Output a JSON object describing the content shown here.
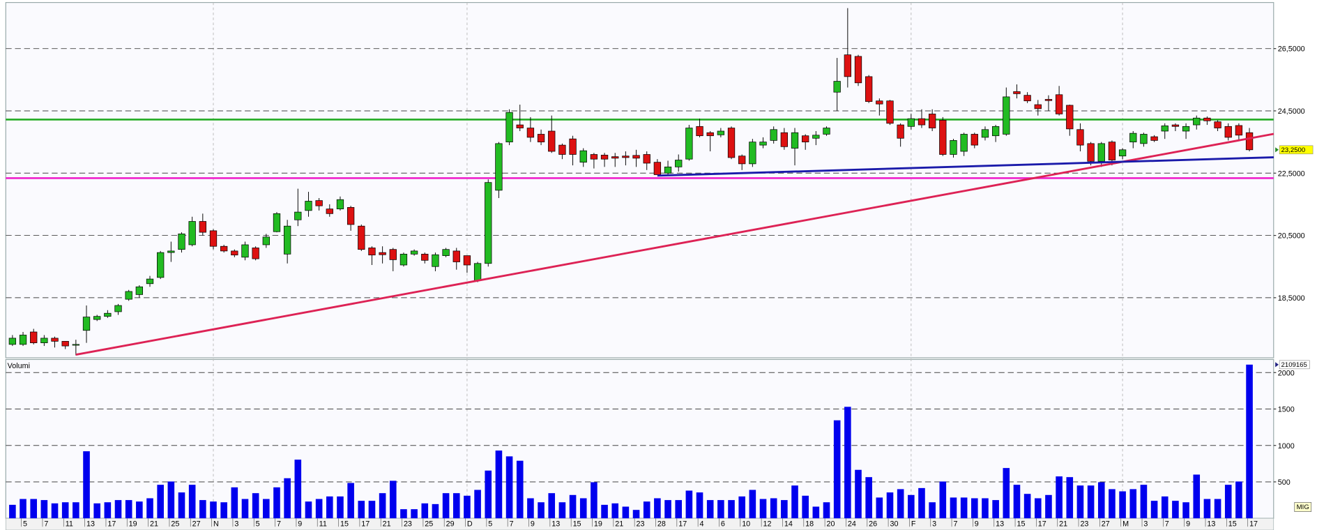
{
  "chart_data": [
    {
      "type": "candlestick",
      "categories": [
        null,
        "5",
        null,
        "7",
        null,
        "11",
        null,
        "13",
        null,
        "17",
        null,
        "19",
        null,
        "21",
        null,
        "25",
        null,
        "27",
        null,
        "N",
        null,
        "3",
        null,
        "5",
        null,
        "7",
        null,
        "9",
        null,
        "11",
        null,
        "15",
        null,
        "17",
        null,
        "21",
        null,
        "23",
        null,
        "25",
        null,
        "29",
        null,
        "D",
        null,
        "5",
        null,
        "7",
        null,
        "9",
        null,
        "13",
        null,
        "15",
        null,
        "19",
        null,
        "21",
        null,
        "23",
        null,
        "28",
        null,
        "17",
        null,
        "4",
        null,
        "6",
        null,
        "10",
        null,
        "12",
        null,
        "14",
        null,
        "18",
        null,
        "20",
        null,
        "24",
        null,
        "26",
        null,
        "30",
        null,
        "F",
        null,
        "3",
        null,
        "7",
        null,
        "9",
        null,
        "13",
        null,
        "15",
        null,
        "17",
        null,
        "21",
        null,
        "23",
        null,
        "27",
        null,
        "M",
        null,
        "3",
        null,
        "7",
        null,
        "9",
        null,
        "13",
        null,
        "15",
        null,
        "17"
      ],
      "open": [
        17.0,
        17.0,
        17.4,
        17.05,
        17.2,
        17.1,
        16.98,
        17.45,
        17.8,
        17.9,
        18.05,
        18.45,
        18.6,
        18.95,
        19.15,
        19.95,
        20.05,
        20.2,
        20.95,
        20.65,
        20.15,
        20.0,
        19.8,
        20.1,
        20.2,
        20.62,
        19.9,
        21.0,
        21.3,
        21.62,
        21.35,
        21.35,
        21.4,
        20.8,
        20.1,
        19.95,
        20.05,
        19.55,
        19.9,
        19.9,
        19.5,
        19.85,
        20.0,
        19.85,
        19.05,
        19.6,
        21.95,
        23.5,
        24.05,
        23.95,
        23.75,
        23.85,
        23.4,
        23.6,
        22.85,
        23.1,
        23.08,
        23.03,
        23.05,
        23.07,
        23.1,
        22.85,
        22.5,
        22.7,
        22.95,
        24.0,
        23.8,
        23.73,
        23.95,
        23.05,
        22.8,
        23.4,
        23.55,
        23.8,
        23.3,
        23.7,
        23.62,
        23.75,
        25.1,
        26.3,
        26.25,
        25.6,
        24.82,
        24.82,
        24.05,
        24.0,
        24.25,
        24.4,
        24.2,
        23.1,
        23.2,
        23.75,
        23.65,
        23.7,
        23.75,
        25.12,
        25.0,
        24.7,
        24.87,
        25.02,
        24.68,
        23.9,
        23.45,
        22.88,
        23.5,
        23.05,
        23.5,
        23.45,
        23.67,
        23.85,
        24.05,
        23.85,
        24.05,
        24.27,
        24.15,
        24.0,
        24.03,
        23.8
      ],
      "high": [
        17.3,
        17.4,
        17.5,
        17.3,
        17.25,
        17.1,
        17.15,
        18.25,
        17.95,
        18.1,
        18.3,
        18.75,
        18.9,
        19.2,
        20.0,
        20.3,
        20.6,
        21.1,
        21.2,
        20.7,
        20.2,
        20.05,
        20.3,
        20.15,
        20.55,
        21.25,
        21.0,
        22.0,
        21.9,
        21.7,
        21.5,
        21.75,
        21.45,
        20.85,
        20.15,
        20.15,
        20.1,
        19.95,
        20.05,
        19.95,
        19.95,
        20.1,
        20.1,
        19.85,
        19.65,
        22.3,
        23.5,
        24.55,
        24.7,
        24.3,
        23.9,
        24.35,
        23.45,
        23.7,
        23.3,
        23.15,
        23.15,
        23.15,
        23.2,
        23.25,
        23.2,
        22.95,
        22.9,
        23.1,
        24.05,
        24.25,
        23.85,
        23.95,
        24.0,
        23.1,
        23.6,
        23.65,
        24.0,
        23.95,
        23.95,
        23.75,
        23.85,
        24.0,
        26.2,
        27.8,
        26.3,
        25.65,
        24.9,
        24.85,
        24.1,
        24.4,
        24.55,
        24.55,
        24.3,
        23.6,
        23.8,
        23.8,
        24.0,
        24.05,
        25.25,
        25.35,
        25.1,
        24.85,
        25.0,
        25.3,
        24.7,
        24.1,
        23.5,
        23.5,
        23.55,
        23.3,
        23.85,
        23.8,
        23.72,
        24.1,
        24.1,
        24.1,
        24.35,
        24.32,
        24.2,
        24.1,
        24.1,
        23.95
      ],
      "low": [
        16.95,
        16.95,
        17.0,
        16.95,
        16.9,
        16.85,
        16.65,
        17.05,
        17.75,
        17.85,
        17.95,
        18.4,
        18.5,
        18.85,
        19.1,
        19.65,
        19.95,
        20.15,
        20.5,
        20.05,
        19.95,
        19.8,
        19.7,
        19.7,
        20.1,
        20.6,
        19.6,
        20.8,
        21.1,
        21.3,
        21.1,
        21.3,
        20.65,
        20.0,
        19.55,
        19.6,
        19.35,
        19.5,
        19.85,
        19.6,
        19.35,
        19.8,
        19.4,
        19.3,
        19.0,
        19.5,
        21.7,
        23.4,
        23.85,
        23.5,
        23.4,
        23.15,
        22.95,
        22.75,
        22.7,
        22.65,
        22.7,
        22.7,
        22.75,
        22.7,
        22.6,
        22.45,
        22.45,
        22.55,
        22.9,
        23.65,
        23.2,
        23.65,
        22.95,
        22.6,
        22.7,
        23.3,
        23.45,
        23.25,
        22.75,
        23.25,
        23.4,
        23.7,
        24.5,
        25.25,
        25.3,
        24.75,
        24.35,
        24.05,
        23.35,
        23.9,
        23.95,
        23.85,
        23.05,
        23.0,
        23.05,
        23.3,
        23.55,
        23.5,
        23.7,
        24.9,
        24.75,
        24.35,
        24.5,
        24.35,
        23.7,
        23.2,
        22.75,
        22.7,
        22.75,
        22.95,
        23.3,
        23.35,
        23.5,
        23.6,
        23.85,
        23.6,
        23.9,
        24.05,
        23.85,
        23.55,
        23.55,
        23.2
      ],
      "close": [
        17.2,
        17.3,
        17.05,
        17.2,
        17.1,
        16.95,
        17.0,
        17.88,
        17.9,
        18.0,
        18.25,
        18.7,
        18.85,
        19.1,
        19.95,
        20.0,
        20.55,
        20.95,
        20.6,
        20.15,
        20.0,
        19.87,
        20.2,
        19.75,
        20.45,
        21.2,
        20.8,
        21.25,
        21.6,
        21.45,
        21.2,
        21.65,
        20.85,
        20.05,
        19.87,
        19.88,
        19.72,
        19.9,
        20.0,
        19.7,
        19.88,
        20.05,
        19.65,
        19.55,
        19.6,
        22.2,
        23.45,
        24.45,
        23.95,
        23.65,
        23.5,
        23.2,
        23.1,
        23.1,
        23.22,
        22.95,
        22.95,
        22.98,
        23.0,
        22.98,
        22.82,
        22.45,
        22.7,
        22.92,
        23.95,
        23.7,
        23.7,
        23.85,
        23.0,
        22.8,
        23.5,
        23.5,
        23.9,
        23.35,
        23.8,
        23.5,
        23.72,
        23.95,
        25.45,
        25.6,
        25.4,
        24.8,
        24.72,
        24.1,
        23.62,
        24.25,
        24.05,
        23.95,
        23.1,
        23.55,
        23.75,
        23.4,
        23.9,
        24.0,
        24.95,
        25.05,
        24.82,
        24.57,
        24.83,
        24.4,
        23.92,
        23.4,
        22.88,
        23.45,
        22.92,
        23.25,
        23.78,
        23.75,
        23.55,
        24.02,
        24.0,
        24.0,
        24.27,
        24.18,
        23.95,
        23.65,
        23.72,
        23.25
      ],
      "last_label": "23,2500",
      "up_color": "#22bb22",
      "down_color": "#dd1111",
      "ylim": [
        16.57,
        27.98
      ],
      "yticks": [
        {
          "value": 18.5,
          "label": "18,5000"
        },
        {
          "value": 20.5,
          "label": "20,5000"
        },
        {
          "value": 22.5,
          "label": "22,5000"
        },
        {
          "value": 24.5,
          "label": "24,5000"
        },
        {
          "value": 26.5,
          "label": "26,5000"
        }
      ],
      "grid": true,
      "levels": [
        {
          "value": 24.22,
          "color": "#22aa22"
        },
        {
          "value": 22.34,
          "color": "#ee22cc"
        }
      ],
      "trendlines": [
        {
          "x": [
            6,
            119.3
          ],
          "y": [
            16.67,
            23.76
          ],
          "color": "#dd2255"
        },
        {
          "x": [
            61,
            119.3
          ],
          "y": [
            22.42,
            23.01
          ],
          "color": "#1a1aaa"
        }
      ]
    },
    {
      "type": "bar",
      "title": "Volumi",
      "values": [
        185,
        265,
        265,
        250,
        205,
        220,
        220,
        920,
        205,
        220,
        250,
        250,
        230,
        275,
        460,
        505,
        355,
        460,
        250,
        230,
        220,
        425,
        265,
        345,
        265,
        425,
        550,
        805,
        230,
        265,
        300,
        300,
        485,
        240,
        240,
        345,
        515,
        125,
        125,
        205,
        195,
        345,
        345,
        310,
        390,
        655,
        930,
        850,
        790,
        275,
        220,
        345,
        220,
        320,
        275,
        495,
        185,
        205,
        160,
        115,
        230,
        275,
        250,
        250,
        380,
        355,
        250,
        250,
        250,
        300,
        390,
        265,
        275,
        250,
        450,
        310,
        160,
        220,
        1345,
        1530,
        665,
        565,
        285,
        355,
        400,
        320,
        415,
        220,
        505,
        285,
        285,
        275,
        275,
        250,
        690,
        460,
        335,
        275,
        320,
        575,
        565,
        450,
        450,
        495,
        400,
        370,
        400,
        460,
        240,
        300,
        240,
        220,
        600,
        265,
        265,
        460,
        505,
        2109.165
      ],
      "last_label": "2109165",
      "color": "#0000ee",
      "ylim": [
        0,
        2180
      ],
      "yticks": [
        500,
        1000,
        1500,
        2000
      ],
      "grid": true,
      "badge": "MIG"
    }
  ]
}
